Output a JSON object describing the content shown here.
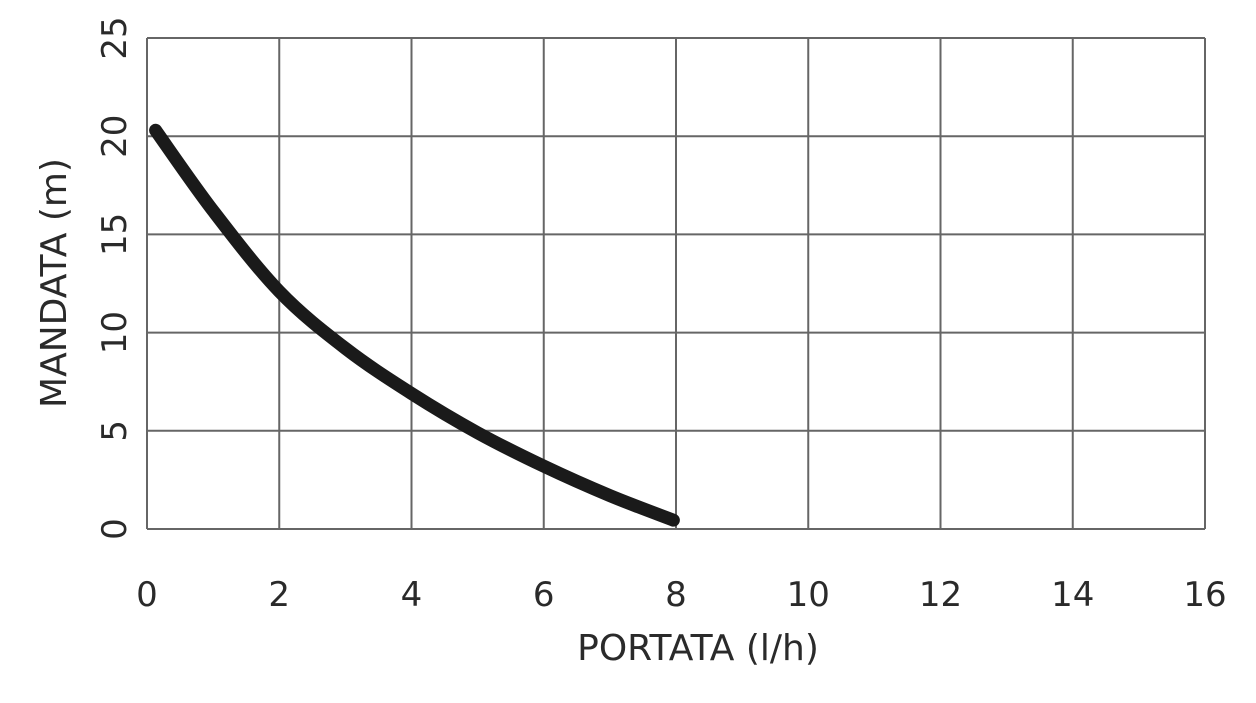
{
  "chart_data": {
    "type": "line",
    "title": "",
    "xlabel": "PORTATA (l/h)",
    "ylabel": "MANDATA (m)",
    "xlim": [
      0,
      16
    ],
    "ylim": [
      0,
      25
    ],
    "xticks": [
      0,
      2,
      4,
      6,
      8,
      10,
      12,
      14,
      16
    ],
    "yticks": [
      0,
      5,
      10,
      15,
      20,
      25
    ],
    "grid": true,
    "series": [
      {
        "color": "#1a1a1a",
        "x": [
          0.13,
          1,
          2,
          3,
          4,
          5,
          6,
          7,
          7.96
        ],
        "y": [
          20.3,
          16.2,
          12.1,
          9.2,
          6.9,
          4.9,
          3.2,
          1.7,
          0.45
        ]
      }
    ]
  }
}
